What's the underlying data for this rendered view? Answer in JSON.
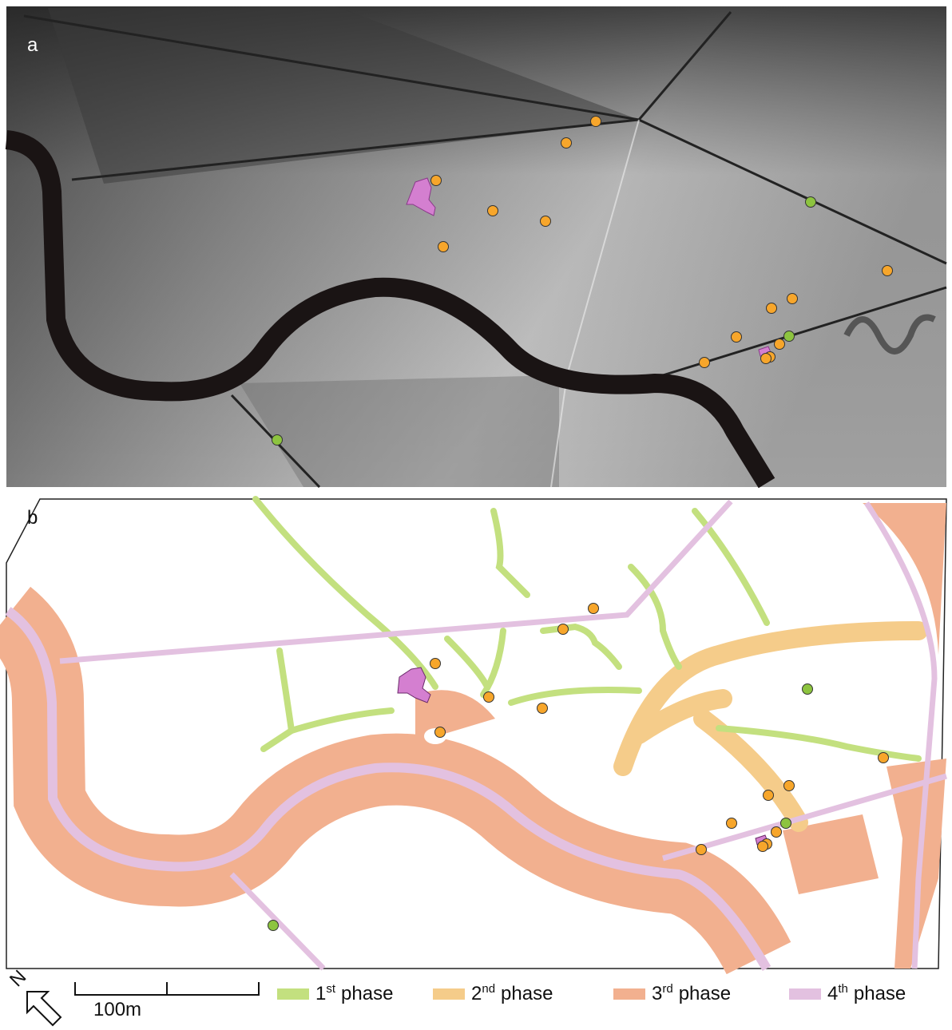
{
  "panels": {
    "a": "a",
    "b": "b"
  },
  "north": "N",
  "scale_bar": "100m",
  "legend": [
    {
      "num": "1",
      "sup": "st",
      "label": "phase"
    },
    {
      "num": "2",
      "sup": "nd",
      "label": "phase"
    },
    {
      "num": "3",
      "sup": "rd",
      "label": "phase"
    },
    {
      "num": "4",
      "sup": "th",
      "label": "phase"
    }
  ]
}
